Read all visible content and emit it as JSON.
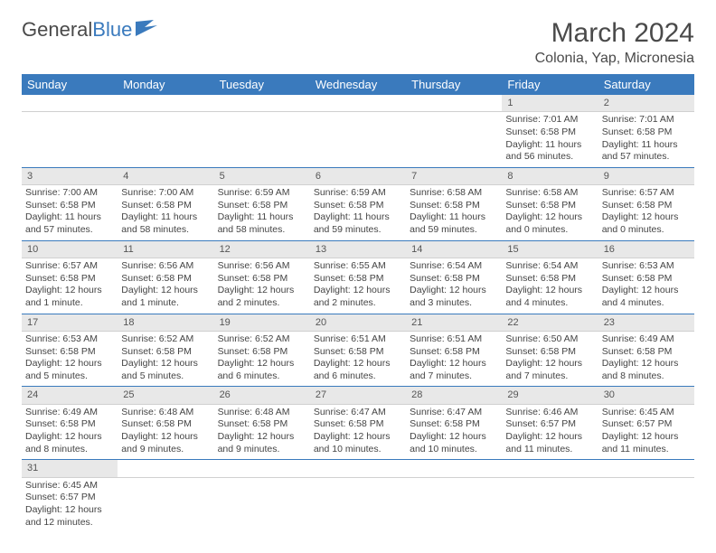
{
  "logo": {
    "text1": "General",
    "text2": "Blue"
  },
  "title": "March 2024",
  "location": "Colonia, Yap, Micronesia",
  "colors": {
    "header_bg": "#3a7abd",
    "header_fg": "#ffffff",
    "daynum_bg": "#e8e8e8",
    "row_border": "#3a7abd"
  },
  "day_headers": [
    "Sunday",
    "Monday",
    "Tuesday",
    "Wednesday",
    "Thursday",
    "Friday",
    "Saturday"
  ],
  "weeks": [
    [
      null,
      null,
      null,
      null,
      null,
      {
        "n": "1",
        "r": "Sunrise: 7:01 AM",
        "s": "Sunset: 6:58 PM",
        "d1": "Daylight: 11 hours",
        "d2": "and 56 minutes."
      },
      {
        "n": "2",
        "r": "Sunrise: 7:01 AM",
        "s": "Sunset: 6:58 PM",
        "d1": "Daylight: 11 hours",
        "d2": "and 57 minutes."
      }
    ],
    [
      {
        "n": "3",
        "r": "Sunrise: 7:00 AM",
        "s": "Sunset: 6:58 PM",
        "d1": "Daylight: 11 hours",
        "d2": "and 57 minutes."
      },
      {
        "n": "4",
        "r": "Sunrise: 7:00 AM",
        "s": "Sunset: 6:58 PM",
        "d1": "Daylight: 11 hours",
        "d2": "and 58 minutes."
      },
      {
        "n": "5",
        "r": "Sunrise: 6:59 AM",
        "s": "Sunset: 6:58 PM",
        "d1": "Daylight: 11 hours",
        "d2": "and 58 minutes."
      },
      {
        "n": "6",
        "r": "Sunrise: 6:59 AM",
        "s": "Sunset: 6:58 PM",
        "d1": "Daylight: 11 hours",
        "d2": "and 59 minutes."
      },
      {
        "n": "7",
        "r": "Sunrise: 6:58 AM",
        "s": "Sunset: 6:58 PM",
        "d1": "Daylight: 11 hours",
        "d2": "and 59 minutes."
      },
      {
        "n": "8",
        "r": "Sunrise: 6:58 AM",
        "s": "Sunset: 6:58 PM",
        "d1": "Daylight: 12 hours",
        "d2": "and 0 minutes."
      },
      {
        "n": "9",
        "r": "Sunrise: 6:57 AM",
        "s": "Sunset: 6:58 PM",
        "d1": "Daylight: 12 hours",
        "d2": "and 0 minutes."
      }
    ],
    [
      {
        "n": "10",
        "r": "Sunrise: 6:57 AM",
        "s": "Sunset: 6:58 PM",
        "d1": "Daylight: 12 hours",
        "d2": "and 1 minute."
      },
      {
        "n": "11",
        "r": "Sunrise: 6:56 AM",
        "s": "Sunset: 6:58 PM",
        "d1": "Daylight: 12 hours",
        "d2": "and 1 minute."
      },
      {
        "n": "12",
        "r": "Sunrise: 6:56 AM",
        "s": "Sunset: 6:58 PM",
        "d1": "Daylight: 12 hours",
        "d2": "and 2 minutes."
      },
      {
        "n": "13",
        "r": "Sunrise: 6:55 AM",
        "s": "Sunset: 6:58 PM",
        "d1": "Daylight: 12 hours",
        "d2": "and 2 minutes."
      },
      {
        "n": "14",
        "r": "Sunrise: 6:54 AM",
        "s": "Sunset: 6:58 PM",
        "d1": "Daylight: 12 hours",
        "d2": "and 3 minutes."
      },
      {
        "n": "15",
        "r": "Sunrise: 6:54 AM",
        "s": "Sunset: 6:58 PM",
        "d1": "Daylight: 12 hours",
        "d2": "and 4 minutes."
      },
      {
        "n": "16",
        "r": "Sunrise: 6:53 AM",
        "s": "Sunset: 6:58 PM",
        "d1": "Daylight: 12 hours",
        "d2": "and 4 minutes."
      }
    ],
    [
      {
        "n": "17",
        "r": "Sunrise: 6:53 AM",
        "s": "Sunset: 6:58 PM",
        "d1": "Daylight: 12 hours",
        "d2": "and 5 minutes."
      },
      {
        "n": "18",
        "r": "Sunrise: 6:52 AM",
        "s": "Sunset: 6:58 PM",
        "d1": "Daylight: 12 hours",
        "d2": "and 5 minutes."
      },
      {
        "n": "19",
        "r": "Sunrise: 6:52 AM",
        "s": "Sunset: 6:58 PM",
        "d1": "Daylight: 12 hours",
        "d2": "and 6 minutes."
      },
      {
        "n": "20",
        "r": "Sunrise: 6:51 AM",
        "s": "Sunset: 6:58 PM",
        "d1": "Daylight: 12 hours",
        "d2": "and 6 minutes."
      },
      {
        "n": "21",
        "r": "Sunrise: 6:51 AM",
        "s": "Sunset: 6:58 PM",
        "d1": "Daylight: 12 hours",
        "d2": "and 7 minutes."
      },
      {
        "n": "22",
        "r": "Sunrise: 6:50 AM",
        "s": "Sunset: 6:58 PM",
        "d1": "Daylight: 12 hours",
        "d2": "and 7 minutes."
      },
      {
        "n": "23",
        "r": "Sunrise: 6:49 AM",
        "s": "Sunset: 6:58 PM",
        "d1": "Daylight: 12 hours",
        "d2": "and 8 minutes."
      }
    ],
    [
      {
        "n": "24",
        "r": "Sunrise: 6:49 AM",
        "s": "Sunset: 6:58 PM",
        "d1": "Daylight: 12 hours",
        "d2": "and 8 minutes."
      },
      {
        "n": "25",
        "r": "Sunrise: 6:48 AM",
        "s": "Sunset: 6:58 PM",
        "d1": "Daylight: 12 hours",
        "d2": "and 9 minutes."
      },
      {
        "n": "26",
        "r": "Sunrise: 6:48 AM",
        "s": "Sunset: 6:58 PM",
        "d1": "Daylight: 12 hours",
        "d2": "and 9 minutes."
      },
      {
        "n": "27",
        "r": "Sunrise: 6:47 AM",
        "s": "Sunset: 6:58 PM",
        "d1": "Daylight: 12 hours",
        "d2": "and 10 minutes."
      },
      {
        "n": "28",
        "r": "Sunrise: 6:47 AM",
        "s": "Sunset: 6:58 PM",
        "d1": "Daylight: 12 hours",
        "d2": "and 10 minutes."
      },
      {
        "n": "29",
        "r": "Sunrise: 6:46 AM",
        "s": "Sunset: 6:57 PM",
        "d1": "Daylight: 12 hours",
        "d2": "and 11 minutes."
      },
      {
        "n": "30",
        "r": "Sunrise: 6:45 AM",
        "s": "Sunset: 6:57 PM",
        "d1": "Daylight: 12 hours",
        "d2": "and 11 minutes."
      }
    ],
    [
      {
        "n": "31",
        "r": "Sunrise: 6:45 AM",
        "s": "Sunset: 6:57 PM",
        "d1": "Daylight: 12 hours",
        "d2": "and 12 minutes."
      },
      null,
      null,
      null,
      null,
      null,
      null
    ]
  ]
}
